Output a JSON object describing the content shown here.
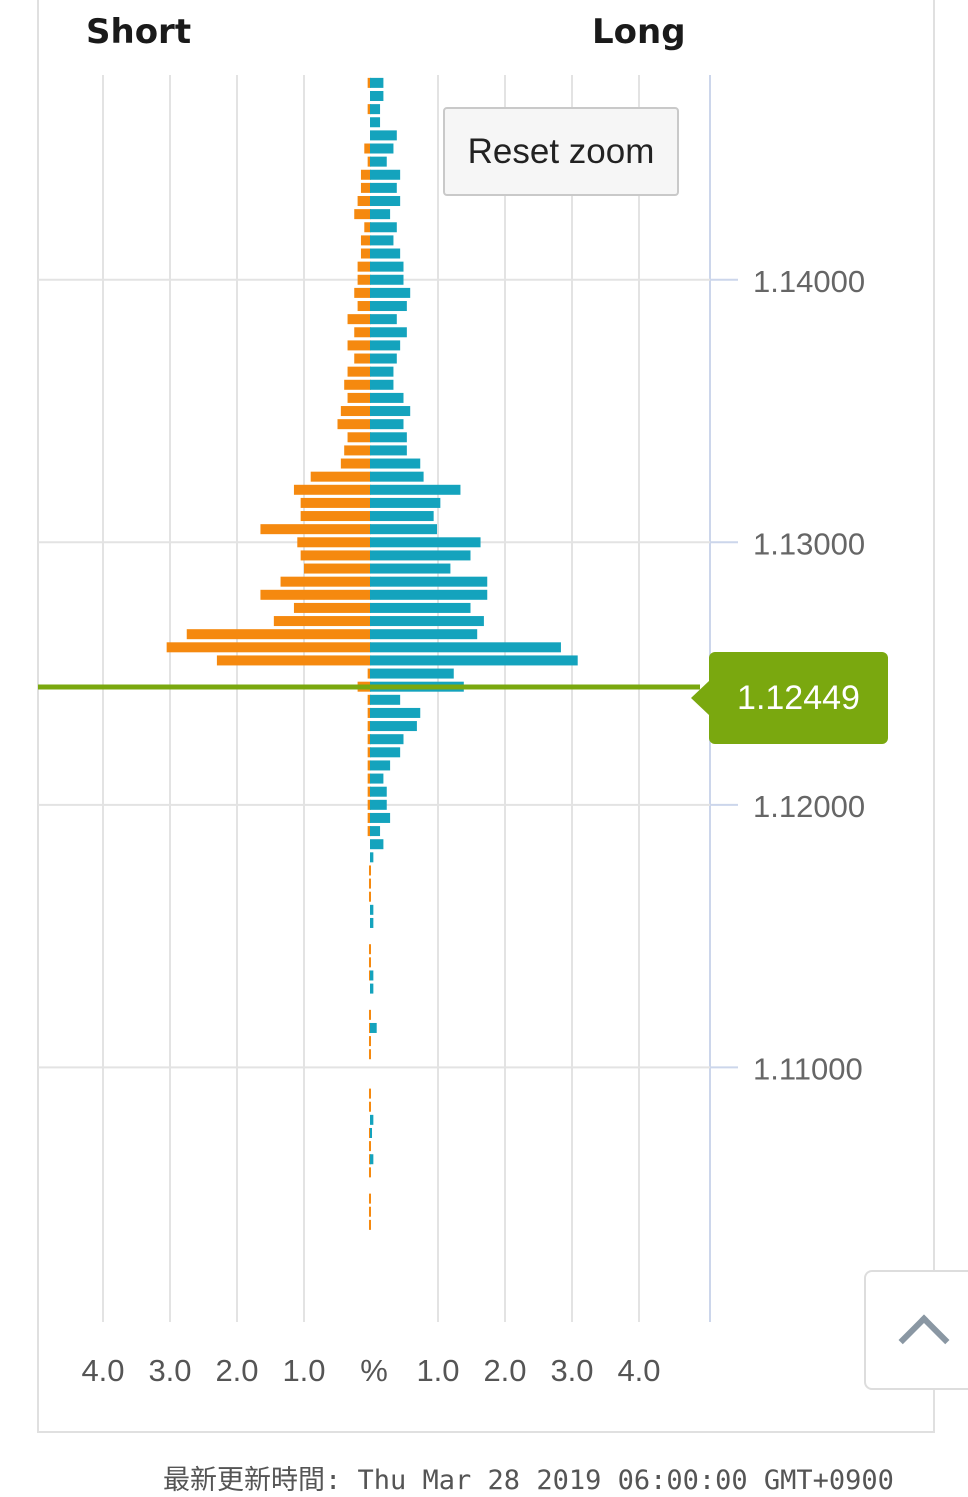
{
  "header": {
    "short_label": "Short",
    "long_label": "Long"
  },
  "reset_zoom_label": "Reset zoom",
  "current_price": "1.12449",
  "footer_text": "最新更新時間: Thu Mar 28 2019 06:00:00 GMT+0900",
  "scroll_top_icon": "chevron-up-icon",
  "colors": {
    "short": "#f5890f",
    "long": "#14a3bd",
    "price_line": "#7aa80f",
    "grid": "#e3e3e3",
    "axis": "#ccd6eb"
  },
  "chart_data": {
    "type": "bar",
    "orientation": "horizontal-butterfly",
    "title": "",
    "xlabel": "%",
    "x_tick_labels": [
      "4.0",
      "3.0",
      "2.0",
      "1.0",
      "%",
      "1.0",
      "2.0",
      "3.0",
      "4.0"
    ],
    "x_range_each_side": [
      0,
      5
    ],
    "y_tick_labels": [
      "1.14000",
      "1.13000",
      "1.12000",
      "1.11000"
    ],
    "y_range": [
      1.1003,
      1.1478
    ],
    "current_price": 1.12449,
    "bucket_size": 0.0005,
    "grid": true,
    "series": [
      {
        "name": "Short",
        "color": "#f5890f",
        "points": [
          [
            1.1475,
            0.05
          ],
          [
            1.1465,
            0.05
          ],
          [
            1.145,
            0.1
          ],
          [
            1.1445,
            0.05
          ],
          [
            1.144,
            0.15
          ],
          [
            1.1435,
            0.15
          ],
          [
            1.143,
            0.2
          ],
          [
            1.1425,
            0.25
          ],
          [
            1.142,
            0.1
          ],
          [
            1.1415,
            0.15
          ],
          [
            1.141,
            0.15
          ],
          [
            1.1405,
            0.2
          ],
          [
            1.14,
            0.2
          ],
          [
            1.1395,
            0.25
          ],
          [
            1.139,
            0.2
          ],
          [
            1.1385,
            0.35
          ],
          [
            1.138,
            0.25
          ],
          [
            1.1375,
            0.35
          ],
          [
            1.137,
            0.25
          ],
          [
            1.1365,
            0.35
          ],
          [
            1.136,
            0.4
          ],
          [
            1.1355,
            0.35
          ],
          [
            1.135,
            0.45
          ],
          [
            1.1345,
            0.5
          ],
          [
            1.134,
            0.35
          ],
          [
            1.1335,
            0.4
          ],
          [
            1.133,
            0.45
          ],
          [
            1.1325,
            0.9
          ],
          [
            1.132,
            1.15
          ],
          [
            1.1315,
            1.05
          ],
          [
            1.131,
            1.05
          ],
          [
            1.1305,
            1.65
          ],
          [
            1.13,
            1.1
          ],
          [
            1.1295,
            1.05
          ],
          [
            1.129,
            1.0
          ],
          [
            1.1285,
            1.35
          ],
          [
            1.128,
            1.65
          ],
          [
            1.1275,
            1.15
          ],
          [
            1.127,
            1.45
          ],
          [
            1.1265,
            2.75
          ],
          [
            1.126,
            3.05
          ],
          [
            1.1255,
            2.3
          ],
          [
            1.125,
            0.05
          ],
          [
            1.1245,
            0.2
          ],
          [
            1.124,
            0.05
          ],
          [
            1.1235,
            0.05
          ],
          [
            1.123,
            0.05
          ],
          [
            1.1225,
            0.05
          ],
          [
            1.122,
            0.05
          ],
          [
            1.1215,
            0.05
          ],
          [
            1.121,
            0.05
          ],
          [
            1.1205,
            0.05
          ],
          [
            1.12,
            0.05
          ],
          [
            1.1195,
            0.05
          ],
          [
            1.119,
            0.05
          ],
          [
            1.1175,
            0.03
          ],
          [
            1.117,
            0.03
          ],
          [
            1.1165,
            0.03
          ],
          [
            1.1145,
            0.03
          ],
          [
            1.114,
            0.03
          ],
          [
            1.1135,
            0.03
          ],
          [
            1.112,
            0.03
          ],
          [
            1.1115,
            0.03
          ],
          [
            1.111,
            0.03
          ],
          [
            1.1105,
            0.03
          ],
          [
            1.109,
            0.03
          ],
          [
            1.1085,
            0.03
          ],
          [
            1.1075,
            0.03
          ],
          [
            1.107,
            0.03
          ],
          [
            1.1065,
            0.03
          ],
          [
            1.106,
            0.03
          ],
          [
            1.105,
            0.03
          ],
          [
            1.1045,
            0.03
          ],
          [
            1.104,
            0.03
          ]
        ]
      },
      {
        "name": "Long",
        "color": "#14a3bd",
        "points": [
          [
            1.1475,
            0.2
          ],
          [
            1.147,
            0.2
          ],
          [
            1.1465,
            0.15
          ],
          [
            1.146,
            0.15
          ],
          [
            1.1455,
            0.4
          ],
          [
            1.145,
            0.35
          ],
          [
            1.1445,
            0.25
          ],
          [
            1.144,
            0.45
          ],
          [
            1.1435,
            0.4
          ],
          [
            1.143,
            0.45
          ],
          [
            1.1425,
            0.3
          ],
          [
            1.142,
            0.4
          ],
          [
            1.1415,
            0.35
          ],
          [
            1.141,
            0.45
          ],
          [
            1.1405,
            0.5
          ],
          [
            1.14,
            0.5
          ],
          [
            1.1395,
            0.6
          ],
          [
            1.139,
            0.55
          ],
          [
            1.1385,
            0.4
          ],
          [
            1.138,
            0.55
          ],
          [
            1.1375,
            0.45
          ],
          [
            1.137,
            0.4
          ],
          [
            1.1365,
            0.35
          ],
          [
            1.136,
            0.35
          ],
          [
            1.1355,
            0.5
          ],
          [
            1.135,
            0.6
          ],
          [
            1.1345,
            0.5
          ],
          [
            1.134,
            0.55
          ],
          [
            1.1335,
            0.55
          ],
          [
            1.133,
            0.75
          ],
          [
            1.1325,
            0.8
          ],
          [
            1.132,
            1.35
          ],
          [
            1.1315,
            1.05
          ],
          [
            1.131,
            0.95
          ],
          [
            1.1305,
            1.0
          ],
          [
            1.13,
            1.65
          ],
          [
            1.1295,
            1.5
          ],
          [
            1.129,
            1.2
          ],
          [
            1.1285,
            1.75
          ],
          [
            1.128,
            1.75
          ],
          [
            1.1275,
            1.5
          ],
          [
            1.127,
            1.7
          ],
          [
            1.1265,
            1.6
          ],
          [
            1.126,
            2.85
          ],
          [
            1.1255,
            3.1
          ],
          [
            1.125,
            1.25
          ],
          [
            1.1245,
            1.4
          ],
          [
            1.124,
            0.45
          ],
          [
            1.1235,
            0.75
          ],
          [
            1.123,
            0.7
          ],
          [
            1.1225,
            0.5
          ],
          [
            1.122,
            0.45
          ],
          [
            1.1215,
            0.3
          ],
          [
            1.121,
            0.2
          ],
          [
            1.1205,
            0.25
          ],
          [
            1.12,
            0.25
          ],
          [
            1.1195,
            0.3
          ],
          [
            1.119,
            0.15
          ],
          [
            1.1185,
            0.2
          ],
          [
            1.118,
            0.05
          ],
          [
            1.116,
            0.05
          ],
          [
            1.1155,
            0.05
          ],
          [
            1.1135,
            0.05
          ],
          [
            1.113,
            0.05
          ],
          [
            1.1115,
            0.1
          ],
          [
            1.108,
            0.05
          ],
          [
            1.1075,
            0.03
          ],
          [
            1.1065,
            0.05
          ]
        ]
      }
    ]
  }
}
